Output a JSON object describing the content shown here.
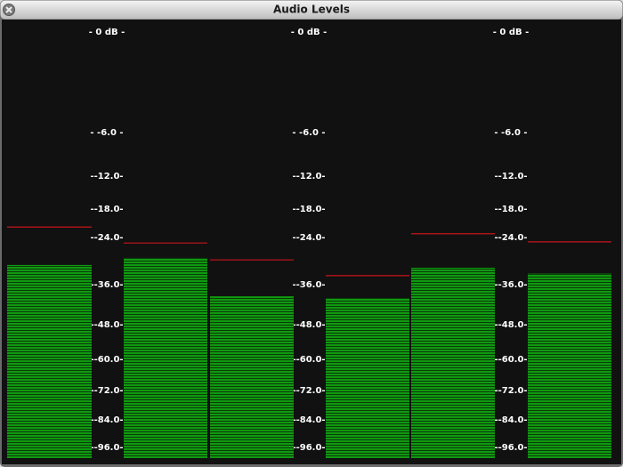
{
  "window": {
    "title": "Audio Levels"
  },
  "meter": {
    "scale": [
      {
        "value": 0,
        "label": "- 0 dB -"
      },
      {
        "value": -6,
        "label": "- -6.0 -"
      },
      {
        "value": -12,
        "label": "--12.0-"
      },
      {
        "value": -18,
        "label": "--18.0-"
      },
      {
        "value": -24,
        "label": "--24.0-"
      },
      {
        "value": -36,
        "label": "--36.0-"
      },
      {
        "value": -48,
        "label": "--48.0-"
      },
      {
        "value": -60,
        "label": "--60.0-"
      },
      {
        "value": -72,
        "label": "--72.0-"
      },
      {
        "value": -84,
        "label": "--84.0-"
      },
      {
        "value": -96,
        "label": "--96.0-"
      }
    ],
    "levels": [
      -31.0,
      -29.2,
      -39.5,
      -40.0,
      -31.7,
      -33.2
    ],
    "peaks": [
      -21.8,
      -25.4,
      -29.7,
      -33.7,
      -23.2,
      -25.1
    ],
    "bar_color": "#109a10",
    "peak_color": "#c8141a"
  }
}
